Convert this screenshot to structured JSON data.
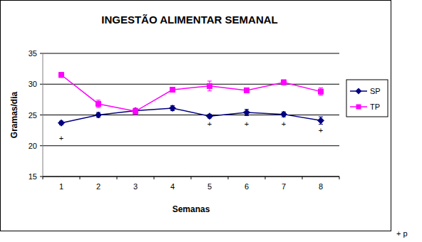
{
  "chart_data": {
    "type": "line",
    "title": "INGESTÃO ALIMENTAR SEMANAL",
    "x_label": "Semanas",
    "y_label": "Gramas/dia",
    "categories": [
      "1",
      "2",
      "3",
      "4",
      "5",
      "6",
      "7",
      "8"
    ],
    "series": [
      {
        "name": "SP",
        "color": "#000080",
        "marker": "diamond",
        "values": [
          23.7,
          25.0,
          25.7,
          26.1,
          24.8,
          25.4,
          25.1,
          24.1
        ],
        "errors": [
          0.3,
          0.4,
          0.3,
          0.4,
          0.3,
          0.5,
          0.4,
          0.6
        ]
      },
      {
        "name": "TP",
        "color": "#ff00ff",
        "marker": "square",
        "values": [
          31.5,
          26.8,
          25.6,
          29.1,
          29.7,
          29.0,
          30.3,
          28.8
        ],
        "errors": [
          0.4,
          0.6,
          0.5,
          0.3,
          0.8,
          0.4,
          0.4,
          0.6
        ]
      }
    ],
    "annotations": [
      {
        "text": "+",
        "x": 1,
        "y": 21.3
      },
      {
        "text": "+",
        "x": 5,
        "y": 23.5
      },
      {
        "text": "+",
        "x": 6,
        "y": 23.5
      },
      {
        "text": "+",
        "x": 7,
        "y": 23.5
      },
      {
        "text": "+",
        "x": 8,
        "y": 22.5
      }
    ],
    "footnote": "+ p",
    "ylim": [
      15,
      35
    ],
    "yticks": [
      15,
      20,
      25,
      30,
      35
    ],
    "grid": true,
    "legend": "right"
  }
}
